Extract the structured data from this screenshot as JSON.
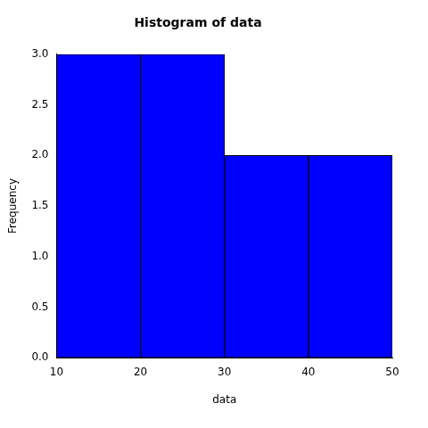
{
  "chart_data": {
    "type": "histogram",
    "title": "Histogram of data",
    "x_label": "data",
    "y_label": "Frequency",
    "bins": [
      10,
      20,
      30,
      40,
      50
    ],
    "values": [
      3,
      3,
      2,
      2
    ],
    "color": "blue",
    "xlim": [
      10,
      50
    ],
    "xticks": [
      10,
      20,
      30,
      40,
      50
    ],
    "ylim": [
      0,
      3
    ],
    "yticks": [
      {
        "value": 0,
        "label": "0.0"
      },
      0.5,
      {
        "value": 1,
        "label": "1.0"
      },
      1.5,
      {
        "value": 2,
        "label": "2.0"
      },
      2.5,
      {
        "value": 3,
        "label": "3.0"
      }
    ],
    "grid": false
  }
}
